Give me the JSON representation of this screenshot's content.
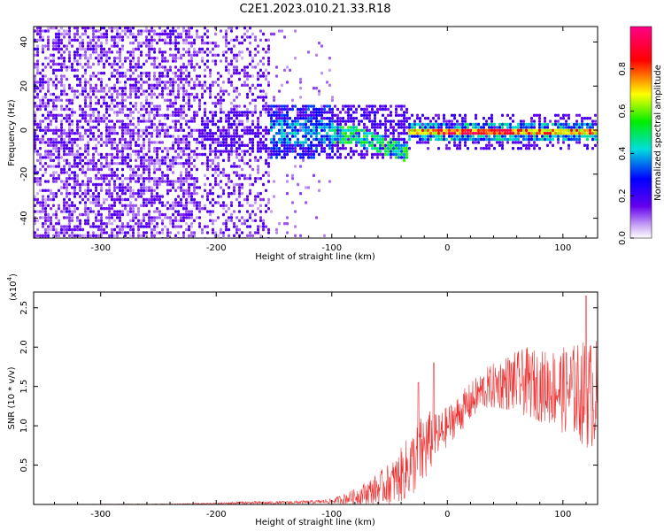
{
  "figure_title": "C2E1.2023.010.21.33.R18",
  "chart_data": [
    {
      "type": "heatmap",
      "panel": "top",
      "xlabel": "Height of straight line (km)",
      "ylabel": "Frequency (Hz)",
      "xlim": [
        -358,
        130
      ],
      "ylim": [
        -49,
        47
      ],
      "xticks": [
        -300,
        -200,
        -100,
        0,
        100
      ],
      "xtick_labels": [
        "-300",
        "-200",
        "-100",
        "0",
        "100"
      ],
      "yticks": [
        -40,
        -20,
        0,
        20,
        40
      ],
      "ytick_labels": [
        "-40",
        "-20",
        "0",
        "20",
        "40"
      ],
      "colorbar": {
        "label": "Normalized spectral amplitude",
        "range": [
          0,
          1
        ],
        "ticks": [
          0.0,
          0.2,
          0.4,
          0.6,
          0.8
        ],
        "tick_labels": [
          "0.0",
          "0.2",
          "0.4",
          "0.6",
          "0.8"
        ],
        "colormap": "rainbow (white-violet-blue-cyan-green-yellow-red-magenta)"
      },
      "features": [
        {
          "x_range": [
            -358,
            -155
          ],
          "freq_range": [
            -49,
            47
          ],
          "amplitude": "low (0.05-0.3), noise-like"
        },
        {
          "x_range": [
            -155,
            -100
          ],
          "freq_range": [
            -12,
            12
          ],
          "amplitude": "moderate (0.2-0.5), band centered near 0 Hz"
        },
        {
          "x_range": [
            -100,
            -35
          ],
          "freq_range": [
            -12,
            8
          ],
          "amplitude": "moderate (0.3-0.6), curve dipping to about -10 Hz near -40 km"
        },
        {
          "x_range": [
            -35,
            130
          ],
          "freq_range": [
            -3,
            3
          ],
          "amplitude": "high (0.6-0.95), narrow line at 0 Hz"
        }
      ]
    },
    {
      "type": "line",
      "panel": "bottom",
      "xlabel": "Height of straight line (km)",
      "ylabel": "SNR (10 * v/v)",
      "y_scale_label": "(x10",
      "y_scale_exp": "4",
      "y_scale_close": ")",
      "xlim": [
        -358,
        130
      ],
      "ylim": [
        0,
        2.7
      ],
      "xticks": [
        -300,
        -200,
        -100,
        0,
        100
      ],
      "xtick_labels": [
        "-300",
        "-200",
        "-100",
        "0",
        "100"
      ],
      "yticks": [
        0.5,
        1.0,
        1.5,
        2.0,
        2.5
      ],
      "ytick_labels": [
        "0.5",
        "1.0",
        "1.5",
        "2.0",
        "2.5"
      ],
      "color": "#ee3333",
      "envelope": {
        "x": [
          -358,
          -250,
          -200,
          -180,
          -150,
          -120,
          -100,
          -80,
          -60,
          -45,
          -35,
          -25,
          -20,
          -15,
          -10,
          -5,
          0,
          10,
          20,
          30,
          40,
          50,
          60,
          70,
          80,
          90,
          100,
          110,
          120,
          130
        ],
        "base": [
          0.0,
          0.0,
          0.01,
          0.02,
          0.02,
          0.03,
          0.04,
          0.1,
          0.2,
          0.3,
          0.45,
          0.6,
          0.7,
          0.8,
          0.85,
          0.9,
          1.0,
          1.15,
          1.3,
          1.45,
          1.5,
          1.55,
          1.55,
          1.55,
          1.5,
          1.5,
          1.45,
          1.45,
          1.4,
          1.4
        ],
        "amp": [
          0.0,
          0.01,
          0.01,
          0.02,
          0.02,
          0.02,
          0.03,
          0.1,
          0.2,
          0.3,
          0.4,
          0.45,
          0.5,
          0.4,
          0.3,
          0.3,
          0.25,
          0.25,
          0.25,
          0.25,
          0.3,
          0.35,
          0.4,
          0.45,
          0.45,
          0.5,
          0.55,
          0.6,
          0.7,
          0.7
        ]
      },
      "peaks": [
        {
          "x": -25,
          "y": 1.55
        },
        {
          "x": -12,
          "y": 1.8
        },
        {
          "x": 120,
          "y": 2.65
        }
      ]
    }
  ]
}
